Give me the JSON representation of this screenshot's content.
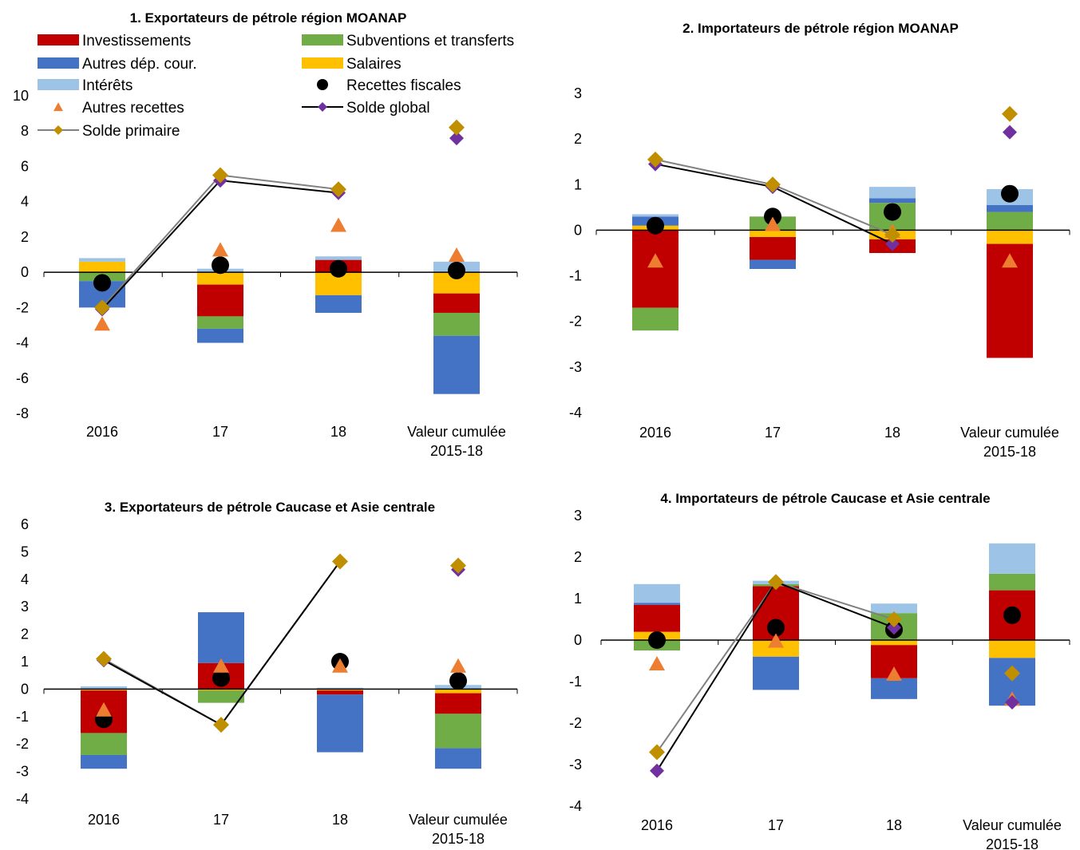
{
  "colors": {
    "investissements": "#C00000",
    "subventions": "#70AD47",
    "autres_dep": "#4472C4",
    "salaires": "#FFC000",
    "interets": "#9DC3E6",
    "recettes_fiscales": "#000000",
    "autres_recettes": "#ED7D31",
    "solde_global": "#7030A0",
    "solde_primaire": "#BF8F00",
    "line_global": "#000000",
    "line_primaire": "#808080"
  },
  "legend": [
    {
      "key": "investissements",
      "label": "Investissements",
      "kind": "bar"
    },
    {
      "key": "subventions",
      "label": "Subventions et transferts",
      "kind": "bar"
    },
    {
      "key": "autres_dep",
      "label": "Autres dép. cour.",
      "kind": "bar"
    },
    {
      "key": "salaires",
      "label": "Salaires",
      "kind": "bar"
    },
    {
      "key": "interets",
      "label": "Intérêts",
      "kind": "bar"
    },
    {
      "key": "recettes_fiscales",
      "label": "Recettes fiscales",
      "kind": "circle"
    },
    {
      "key": "autres_recettes",
      "label": "Autres recettes",
      "kind": "triangle"
    },
    {
      "key": "solde_global",
      "label": "Solde global",
      "kind": "line-diamond"
    },
    {
      "key": "solde_primaire",
      "label": "Solde primaire",
      "kind": "line-diamond"
    }
  ],
  "chart_data": [
    {
      "type": "bar",
      "title": "1. Exportateurs de pétrole région MOANAP",
      "categories": [
        "2016",
        "17",
        "18",
        "Valeur cumulée 2015-18"
      ],
      "ylim": [
        -8,
        10
      ],
      "yticks": [
        -8,
        -6,
        -4,
        -2,
        0,
        2,
        4,
        6,
        8,
        10
      ],
      "stack_order": [
        "salaires",
        "investissements",
        "subventions",
        "autres_dep",
        "interets"
      ],
      "bars": {
        "investissements": [
          0.0,
          -1.8,
          0.7,
          -1.1
        ],
        "subventions": [
          -0.5,
          -0.7,
          0.0,
          -1.3
        ],
        "autres_dep": [
          -1.5,
          -0.8,
          -1.0,
          -3.3
        ],
        "salaires": [
          0.6,
          -0.7,
          -1.3,
          -1.2
        ],
        "interets": [
          0.2,
          0.2,
          0.2,
          0.6
        ]
      },
      "recettes_fiscales": [
        -0.6,
        0.4,
        0.2,
        0.1
      ],
      "autres_recettes": [
        -3.0,
        1.2,
        2.6,
        0.9
      ],
      "solde_global": [
        -2.1,
        5.2,
        4.5,
        7.6
      ],
      "solde_primaire": [
        -2.0,
        5.5,
        4.7,
        8.2
      ],
      "lines_through": 3
    },
    {
      "type": "bar",
      "title": "2. Importateurs de pétrole région MOANAP",
      "categories": [
        "2016",
        "17",
        "18",
        "Valeur cumulée 2015-18"
      ],
      "ylim": [
        -4,
        3
      ],
      "yticks": [
        -4,
        -3,
        -2,
        -1,
        0,
        1,
        2,
        3
      ],
      "stack_order": [
        "salaires",
        "investissements",
        "subventions",
        "autres_dep",
        "interets"
      ],
      "bars": {
        "investissements": [
          -1.7,
          -0.5,
          -0.3,
          -2.5
        ],
        "subventions": [
          -0.5,
          0.3,
          0.6,
          0.4
        ],
        "autres_dep": [
          0.2,
          -0.2,
          0.1,
          0.15
        ],
        "salaires": [
          0.1,
          -0.15,
          -0.2,
          -0.3
        ],
        "interets": [
          0.05,
          0.0,
          0.25,
          0.35
        ]
      },
      "recettes_fiscales": [
        0.1,
        0.3,
        0.4,
        0.8
      ],
      "autres_recettes": [
        -0.7,
        0.1,
        -0.05,
        -0.7
      ],
      "solde_global": [
        1.45,
        0.95,
        -0.3,
        2.15
      ],
      "solde_primaire": [
        1.55,
        1.0,
        -0.1,
        2.55
      ],
      "lines_through": 3
    },
    {
      "type": "bar",
      "title": "3. Exportateurs de pétrole Caucase et Asie centrale",
      "categories": [
        "2016",
        "17",
        "18",
        "Valeur cumulée 2015-18"
      ],
      "ylim": [
        -4,
        6
      ],
      "yticks": [
        -4,
        -3,
        -2,
        -1,
        0,
        1,
        2,
        3,
        4,
        5,
        6
      ],
      "stack_order": [
        "salaires",
        "investissements",
        "subventions",
        "autres_dep",
        "interets"
      ],
      "bars": {
        "investissements": [
          -1.55,
          0.95,
          -0.15,
          -0.75
        ],
        "subventions": [
          -0.8,
          -0.45,
          0.0,
          -1.25
        ],
        "autres_dep": [
          -0.5,
          1.85,
          -2.1,
          -0.75
        ],
        "salaires": [
          -0.05,
          -0.05,
          -0.05,
          -0.15
        ],
        "interets": [
          0.1,
          0.0,
          0.05,
          0.15
        ]
      },
      "recettes_fiscales": [
        -1.1,
        0.4,
        1.0,
        0.3
      ],
      "autres_recettes": [
        -0.8,
        0.8,
        0.8,
        0.8
      ],
      "solde_global": [
        1.05,
        -1.3,
        4.65,
        4.35
      ],
      "solde_primaire": [
        1.1,
        -1.3,
        4.65,
        4.5
      ],
      "lines_through": 3
    },
    {
      "type": "bar",
      "title": "4. Importateurs de pétrole Caucase et Asie centrale",
      "categories": [
        "2016",
        "17",
        "18",
        "Valeur cumulée 2015-18"
      ],
      "ylim": [
        -4,
        3
      ],
      "yticks": [
        -4,
        -3,
        -2,
        -1,
        0,
        1,
        2,
        3
      ],
      "stack_order": [
        "salaires",
        "investissements",
        "subventions",
        "autres_dep",
        "interets"
      ],
      "bars": {
        "investissements": [
          0.65,
          1.3,
          -0.8,
          1.2
        ],
        "subventions": [
          -0.25,
          0.05,
          0.65,
          0.4
        ],
        "autres_dep": [
          0.05,
          -0.8,
          -0.5,
          -1.15
        ],
        "salaires": [
          0.2,
          -0.4,
          -0.12,
          -0.43
        ],
        "interets": [
          0.45,
          0.08,
          0.23,
          0.73
        ]
      },
      "recettes_fiscales": [
        0.0,
        0.3,
        0.25,
        0.6
      ],
      "autres_recettes": [
        -0.6,
        -0.05,
        -0.85,
        -1.45
      ],
      "solde_global": [
        -3.15,
        1.4,
        0.3,
        -1.5
      ],
      "solde_primaire": [
        -2.7,
        1.4,
        0.5,
        -0.8
      ],
      "lines_through": 3
    }
  ]
}
